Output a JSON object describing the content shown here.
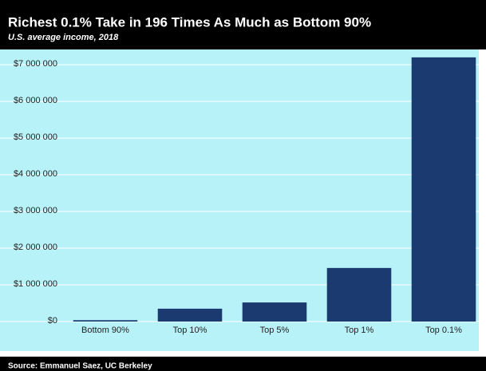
{
  "chart_data": {
    "type": "bar",
    "title": "Richest 0.1% Take in 196 Times As Much as Bottom 90%",
    "subtitle": "U.S. average income, 2018",
    "source": "Source: Emmanuel Saez, UC Berkeley",
    "categories": [
      "Bottom 90%",
      "Top 10%",
      "Top 5%",
      "Top 1%",
      "Top 0.1%"
    ],
    "values": [
      37000,
      350000,
      520000,
      1460000,
      7200000
    ],
    "color": "#1b3a6f",
    "ylim": [
      0,
      7350000
    ],
    "yticks": [
      {
        "value": 0,
        "label": "$0"
      },
      {
        "value": 1000000,
        "label": "$1 000 000"
      },
      {
        "value": 2000000,
        "label": "$2 000 000"
      },
      {
        "value": 3000000,
        "label": "$3 000 000"
      },
      {
        "value": 4000000,
        "label": "$4 000 000"
      },
      {
        "value": 5000000,
        "label": "$5 000 000"
      },
      {
        "value": 6000000,
        "label": "$6 000 000"
      },
      {
        "value": 7000000,
        "label": "$7 000 000"
      }
    ],
    "grid": true
  }
}
